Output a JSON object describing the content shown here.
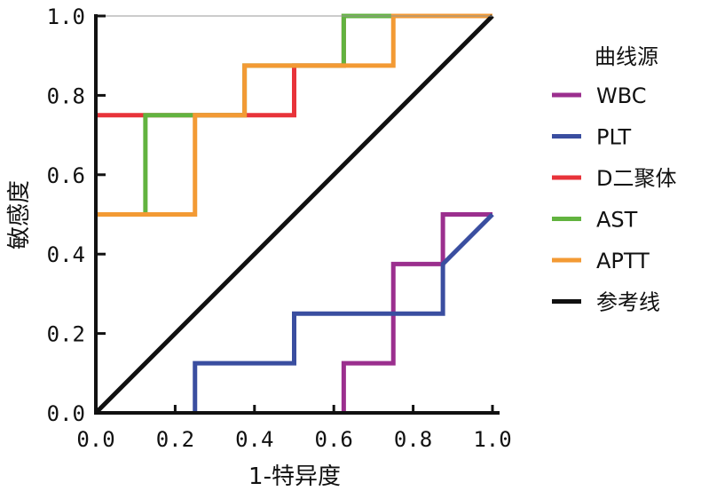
{
  "chart_data": {
    "type": "line",
    "title": "",
    "xlabel": "1-特异度",
    "ylabel": "敏感度",
    "xlim": [
      0,
      1
    ],
    "ylim": [
      0,
      1
    ],
    "xticks": [
      "0.0",
      "0.2",
      "0.4",
      "0.6",
      "0.8",
      "1.0"
    ],
    "yticks": [
      "0.0",
      "0.2",
      "0.4",
      "0.6",
      "0.8",
      "1.0"
    ],
    "grid": false,
    "legend_title": "曲线源",
    "legend_position": "right",
    "series": [
      {
        "name": "WBC",
        "color": "#9b2f8e",
        "points": [
          [
            0.625,
            0
          ],
          [
            0.625,
            0.125
          ],
          [
            0.75,
            0.125
          ],
          [
            0.75,
            0.375
          ],
          [
            0.875,
            0.375
          ],
          [
            0.875,
            0.5
          ],
          [
            1,
            0.5
          ]
        ]
      },
      {
        "name": "PLT",
        "color": "#3a4ea0",
        "points": [
          [
            0.25,
            0
          ],
          [
            0.25,
            0.125
          ],
          [
            0.5,
            0.125
          ],
          [
            0.5,
            0.25
          ],
          [
            0.875,
            0.25
          ],
          [
            0.875,
            0.375
          ],
          [
            1,
            0.5
          ]
        ]
      },
      {
        "name": "D二聚体",
        "color": "#e8333a",
        "points": [
          [
            0,
            0.75
          ],
          [
            0.5,
            0.75
          ],
          [
            0.5,
            0.875
          ],
          [
            0.625,
            0.875
          ],
          [
            0.625,
            1
          ],
          [
            1,
            1
          ]
        ]
      },
      {
        "name": "AST",
        "color": "#62b33f",
        "points": [
          [
            0,
            0.5
          ],
          [
            0.125,
            0.5
          ],
          [
            0.125,
            0.75
          ],
          [
            0.375,
            0.75
          ],
          [
            0.375,
            0.875
          ],
          [
            0.625,
            0.875
          ],
          [
            0.625,
            1
          ],
          [
            1,
            1
          ]
        ]
      },
      {
        "name": "APTT",
        "color": "#f39a34",
        "points": [
          [
            0,
            0.5
          ],
          [
            0.25,
            0.5
          ],
          [
            0.25,
            0.75
          ],
          [
            0.375,
            0.75
          ],
          [
            0.375,
            0.875
          ],
          [
            0.75,
            0.875
          ],
          [
            0.75,
            1
          ],
          [
            1,
            1
          ]
        ]
      },
      {
        "name": "参考线",
        "color": "#111111",
        "points": [
          [
            0,
            0
          ],
          [
            1,
            1
          ]
        ]
      }
    ]
  }
}
